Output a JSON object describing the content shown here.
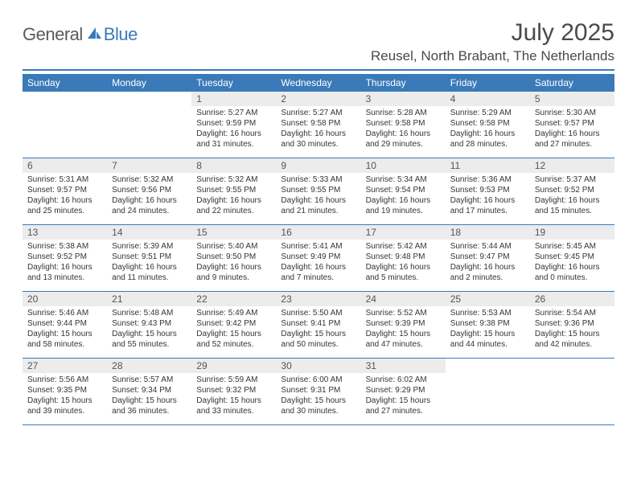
{
  "logo": {
    "word1": "General",
    "word2": "Blue"
  },
  "colors": {
    "accent": "#3a7ab8",
    "header_bg": "#3a7ab8",
    "header_text": "#ffffff",
    "daynum_bg": "#ececec",
    "text": "#333333"
  },
  "title": "July 2025",
  "location": "Reusel, North Brabant, The Netherlands",
  "weekdays": [
    "Sunday",
    "Monday",
    "Tuesday",
    "Wednesday",
    "Thursday",
    "Friday",
    "Saturday"
  ],
  "weeks": [
    [
      {
        "n": "",
        "sr": "",
        "ss": "",
        "dl1": "",
        "dl2": ""
      },
      {
        "n": "",
        "sr": "",
        "ss": "",
        "dl1": "",
        "dl2": ""
      },
      {
        "n": "1",
        "sr": "Sunrise: 5:27 AM",
        "ss": "Sunset: 9:59 PM",
        "dl1": "Daylight: 16 hours",
        "dl2": "and 31 minutes."
      },
      {
        "n": "2",
        "sr": "Sunrise: 5:27 AM",
        "ss": "Sunset: 9:58 PM",
        "dl1": "Daylight: 16 hours",
        "dl2": "and 30 minutes."
      },
      {
        "n": "3",
        "sr": "Sunrise: 5:28 AM",
        "ss": "Sunset: 9:58 PM",
        "dl1": "Daylight: 16 hours",
        "dl2": "and 29 minutes."
      },
      {
        "n": "4",
        "sr": "Sunrise: 5:29 AM",
        "ss": "Sunset: 9:58 PM",
        "dl1": "Daylight: 16 hours",
        "dl2": "and 28 minutes."
      },
      {
        "n": "5",
        "sr": "Sunrise: 5:30 AM",
        "ss": "Sunset: 9:57 PM",
        "dl1": "Daylight: 16 hours",
        "dl2": "and 27 minutes."
      }
    ],
    [
      {
        "n": "6",
        "sr": "Sunrise: 5:31 AM",
        "ss": "Sunset: 9:57 PM",
        "dl1": "Daylight: 16 hours",
        "dl2": "and 25 minutes."
      },
      {
        "n": "7",
        "sr": "Sunrise: 5:32 AM",
        "ss": "Sunset: 9:56 PM",
        "dl1": "Daylight: 16 hours",
        "dl2": "and 24 minutes."
      },
      {
        "n": "8",
        "sr": "Sunrise: 5:32 AM",
        "ss": "Sunset: 9:55 PM",
        "dl1": "Daylight: 16 hours",
        "dl2": "and 22 minutes."
      },
      {
        "n": "9",
        "sr": "Sunrise: 5:33 AM",
        "ss": "Sunset: 9:55 PM",
        "dl1": "Daylight: 16 hours",
        "dl2": "and 21 minutes."
      },
      {
        "n": "10",
        "sr": "Sunrise: 5:34 AM",
        "ss": "Sunset: 9:54 PM",
        "dl1": "Daylight: 16 hours",
        "dl2": "and 19 minutes."
      },
      {
        "n": "11",
        "sr": "Sunrise: 5:36 AM",
        "ss": "Sunset: 9:53 PM",
        "dl1": "Daylight: 16 hours",
        "dl2": "and 17 minutes."
      },
      {
        "n": "12",
        "sr": "Sunrise: 5:37 AM",
        "ss": "Sunset: 9:52 PM",
        "dl1": "Daylight: 16 hours",
        "dl2": "and 15 minutes."
      }
    ],
    [
      {
        "n": "13",
        "sr": "Sunrise: 5:38 AM",
        "ss": "Sunset: 9:52 PM",
        "dl1": "Daylight: 16 hours",
        "dl2": "and 13 minutes."
      },
      {
        "n": "14",
        "sr": "Sunrise: 5:39 AM",
        "ss": "Sunset: 9:51 PM",
        "dl1": "Daylight: 16 hours",
        "dl2": "and 11 minutes."
      },
      {
        "n": "15",
        "sr": "Sunrise: 5:40 AM",
        "ss": "Sunset: 9:50 PM",
        "dl1": "Daylight: 16 hours",
        "dl2": "and 9 minutes."
      },
      {
        "n": "16",
        "sr": "Sunrise: 5:41 AM",
        "ss": "Sunset: 9:49 PM",
        "dl1": "Daylight: 16 hours",
        "dl2": "and 7 minutes."
      },
      {
        "n": "17",
        "sr": "Sunrise: 5:42 AM",
        "ss": "Sunset: 9:48 PM",
        "dl1": "Daylight: 16 hours",
        "dl2": "and 5 minutes."
      },
      {
        "n": "18",
        "sr": "Sunrise: 5:44 AM",
        "ss": "Sunset: 9:47 PM",
        "dl1": "Daylight: 16 hours",
        "dl2": "and 2 minutes."
      },
      {
        "n": "19",
        "sr": "Sunrise: 5:45 AM",
        "ss": "Sunset: 9:45 PM",
        "dl1": "Daylight: 16 hours",
        "dl2": "and 0 minutes."
      }
    ],
    [
      {
        "n": "20",
        "sr": "Sunrise: 5:46 AM",
        "ss": "Sunset: 9:44 PM",
        "dl1": "Daylight: 15 hours",
        "dl2": "and 58 minutes."
      },
      {
        "n": "21",
        "sr": "Sunrise: 5:48 AM",
        "ss": "Sunset: 9:43 PM",
        "dl1": "Daylight: 15 hours",
        "dl2": "and 55 minutes."
      },
      {
        "n": "22",
        "sr": "Sunrise: 5:49 AM",
        "ss": "Sunset: 9:42 PM",
        "dl1": "Daylight: 15 hours",
        "dl2": "and 52 minutes."
      },
      {
        "n": "23",
        "sr": "Sunrise: 5:50 AM",
        "ss": "Sunset: 9:41 PM",
        "dl1": "Daylight: 15 hours",
        "dl2": "and 50 minutes."
      },
      {
        "n": "24",
        "sr": "Sunrise: 5:52 AM",
        "ss": "Sunset: 9:39 PM",
        "dl1": "Daylight: 15 hours",
        "dl2": "and 47 minutes."
      },
      {
        "n": "25",
        "sr": "Sunrise: 5:53 AM",
        "ss": "Sunset: 9:38 PM",
        "dl1": "Daylight: 15 hours",
        "dl2": "and 44 minutes."
      },
      {
        "n": "26",
        "sr": "Sunrise: 5:54 AM",
        "ss": "Sunset: 9:36 PM",
        "dl1": "Daylight: 15 hours",
        "dl2": "and 42 minutes."
      }
    ],
    [
      {
        "n": "27",
        "sr": "Sunrise: 5:56 AM",
        "ss": "Sunset: 9:35 PM",
        "dl1": "Daylight: 15 hours",
        "dl2": "and 39 minutes."
      },
      {
        "n": "28",
        "sr": "Sunrise: 5:57 AM",
        "ss": "Sunset: 9:34 PM",
        "dl1": "Daylight: 15 hours",
        "dl2": "and 36 minutes."
      },
      {
        "n": "29",
        "sr": "Sunrise: 5:59 AM",
        "ss": "Sunset: 9:32 PM",
        "dl1": "Daylight: 15 hours",
        "dl2": "and 33 minutes."
      },
      {
        "n": "30",
        "sr": "Sunrise: 6:00 AM",
        "ss": "Sunset: 9:31 PM",
        "dl1": "Daylight: 15 hours",
        "dl2": "and 30 minutes."
      },
      {
        "n": "31",
        "sr": "Sunrise: 6:02 AM",
        "ss": "Sunset: 9:29 PM",
        "dl1": "Daylight: 15 hours",
        "dl2": "and 27 minutes."
      },
      {
        "n": "",
        "sr": "",
        "ss": "",
        "dl1": "",
        "dl2": ""
      },
      {
        "n": "",
        "sr": "",
        "ss": "",
        "dl1": "",
        "dl2": ""
      }
    ]
  ]
}
